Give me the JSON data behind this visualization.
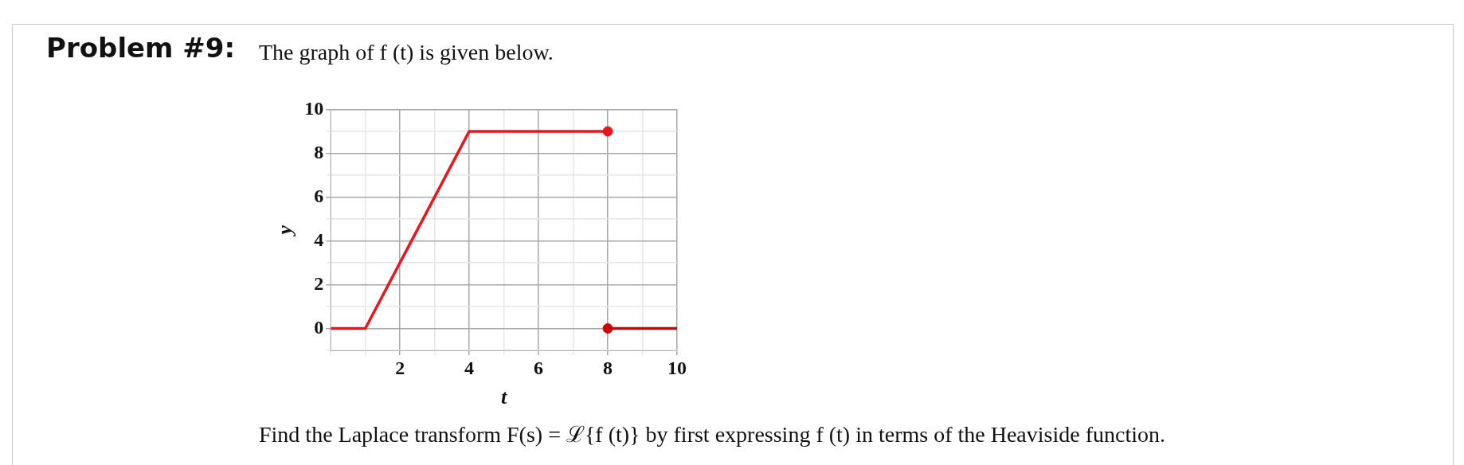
{
  "chart_data": {
    "type": "line",
    "title": "Problem #9:",
    "subtitle": "The graph of f (t) is given below.",
    "xlabel": "t",
    "ylabel": "y",
    "annotations": [
      "Find the Laplace transform F(s) = ℒ{f (t)} by first expressing f (t) in terms of the Heaviside function."
    ],
    "xlim": [
      0,
      10
    ],
    "ylim": [
      -1,
      10
    ],
    "xticks": [
      {
        "value": 0,
        "label": null
      },
      {
        "value": 1,
        "label": null
      },
      2,
      {
        "value": 3,
        "label": null
      },
      4,
      {
        "value": 5,
        "label": null
      },
      6,
      {
        "value": 7,
        "label": null
      },
      8,
      {
        "value": 9,
        "label": null
      },
      10
    ],
    "yticks": [
      {
        "value": -1,
        "label": null
      },
      0,
      {
        "value": 1,
        "label": null
      },
      2,
      {
        "value": 3,
        "label": null
      },
      4,
      {
        "value": 5,
        "label": null
      },
      6,
      {
        "value": 7,
        "label": null
      },
      8,
      {
        "value": 9,
        "label": null
      },
      10
    ],
    "grid": true,
    "legend": false,
    "marker": "none",
    "line_style": "solid",
    "series": [
      {
        "color": "#e8161c",
        "x": [
          0,
          1,
          4,
          8
        ],
        "values": [
          0,
          0,
          9,
          9
        ]
      },
      {
        "color": "#c00a0a",
        "x": [
          8,
          10
        ],
        "values": [
          0,
          0
        ]
      },
      {
        "type": "scatter",
        "marker": "circle",
        "color": "#e8161c",
        "x": [
          8
        ],
        "values": [
          9
        ]
      },
      {
        "type": "scatter",
        "marker": "circle",
        "color": "#d00808",
        "x": [
          8
        ],
        "values": [
          0
        ]
      }
    ]
  }
}
